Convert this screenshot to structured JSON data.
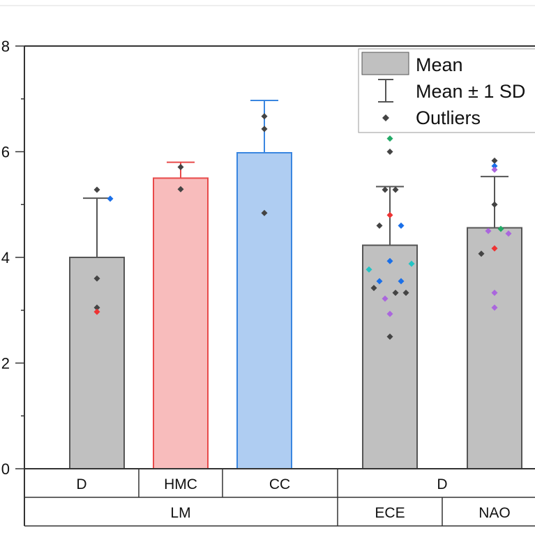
{
  "chart_data": {
    "type": "bar",
    "ylim": [
      0,
      8
    ],
    "yticks": [
      "0",
      "2",
      "4",
      "6",
      "8"
    ],
    "grid": false,
    "legend_placement": "top-right",
    "legend": {
      "mean": "Mean",
      "sd": "Mean ± 1 SD",
      "outliers": "Outliers"
    },
    "categories": [
      {
        "label": "D",
        "mean": 4.0,
        "sd_top": 5.12,
        "fill": "#c0c0c0",
        "stroke": "#555555",
        "points": [
          [
            5.28,
            "#444444"
          ],
          [
            5.11,
            "#1a6fe8"
          ],
          [
            3.6,
            "#444444"
          ],
          [
            3.05,
            "#444444"
          ],
          [
            2.97,
            "#ee3333"
          ]
        ]
      },
      {
        "label": "HMC",
        "mean": 5.5,
        "sd_top": 5.8,
        "fill": "#f8bcbc",
        "stroke": "#e84a4a",
        "points": [
          [
            5.71,
            "#444444"
          ],
          [
            5.29,
            "#444444"
          ]
        ]
      },
      {
        "label": "CC",
        "mean": 5.98,
        "sd_top": 6.97,
        "fill": "#afcdf2",
        "stroke": "#3a86e0",
        "points": [
          [
            6.67,
            "#444444"
          ],
          [
            6.43,
            "#444444"
          ],
          [
            4.84,
            "#444444"
          ]
        ]
      },
      {
        "label": "ECE",
        "mean": 4.23,
        "sd_top": 5.34,
        "fill": "#c0c0c0",
        "stroke": "#555555",
        "points": [
          [
            6.25,
            "#22aa66"
          ],
          [
            6.0,
            "#444444"
          ],
          [
            5.28,
            "#444444"
          ],
          [
            5.28,
            "#444444"
          ],
          [
            4.8,
            "#ee3333"
          ],
          [
            4.6,
            "#444444"
          ],
          [
            4.6,
            "#1a6fe8"
          ],
          [
            3.93,
            "#1a6fe8"
          ],
          [
            3.77,
            "#22c4c4"
          ],
          [
            3.88,
            "#22c4c4"
          ],
          [
            3.55,
            "#1a6fe8"
          ],
          [
            3.55,
            "#1a6fe8"
          ],
          [
            3.42,
            "#444444"
          ],
          [
            3.33,
            "#444444"
          ],
          [
            3.33,
            "#444444"
          ],
          [
            3.22,
            "#aa66dd"
          ],
          [
            2.93,
            "#aa66dd"
          ],
          [
            2.5,
            "#444444"
          ]
        ]
      },
      {
        "label": "NAO",
        "mean": 4.56,
        "sd_top": 5.53,
        "fill": "#c0c0c0",
        "stroke": "#555555",
        "points": [
          [
            5.83,
            "#444444"
          ],
          [
            5.73,
            "#1a6fe8"
          ],
          [
            5.66,
            "#aa66dd"
          ],
          [
            5.0,
            "#444444"
          ],
          [
            4.5,
            "#aa66dd"
          ],
          [
            4.54,
            "#22aa66"
          ],
          [
            4.45,
            "#aa66dd"
          ],
          [
            4.17,
            "#ee3333"
          ],
          [
            4.07,
            "#444444"
          ],
          [
            3.33,
            "#aa66dd"
          ],
          [
            3.05,
            "#aa66dd"
          ]
        ]
      }
    ],
    "table": {
      "row1": [
        "D",
        "HMC",
        "CC",
        "D"
      ],
      "row2": [
        "LM",
        "ECE",
        "NAO"
      ]
    }
  }
}
